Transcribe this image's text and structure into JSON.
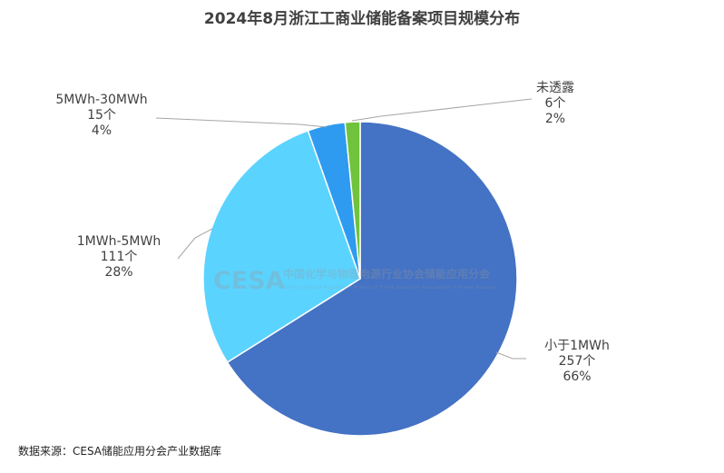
{
  "chart_data": {
    "type": "pie",
    "title": "2024年8月浙江工商业储能备案项目规模分布",
    "slices": [
      {
        "label": "小于1MWh",
        "count": 257,
        "count_text": "257个",
        "percent_text": "66%",
        "color": "#4472C4"
      },
      {
        "label": "1MWh-5MWh",
        "count": 111,
        "count_text": "111个",
        "percent_text": "28%",
        "color": "#5BD3FF"
      },
      {
        "label": "5MWh-30MWh",
        "count": 15,
        "count_text": "15个",
        "percent_text": "4%",
        "color": "#2E9BF0"
      },
      {
        "label": "未透露",
        "count": 6,
        "count_text": "6个",
        "percent_text": "2%",
        "color": "#70C33C"
      }
    ],
    "legend": "none"
  },
  "watermark": {
    "logo": "CESA",
    "name": "中国化学与物理电源行业协会储能应用分会",
    "subtitle": "Energy Storage Application Branch of China Industrial Association of Power Sources"
  },
  "source": "数据来源：CESA储能应用分会产业数据库"
}
